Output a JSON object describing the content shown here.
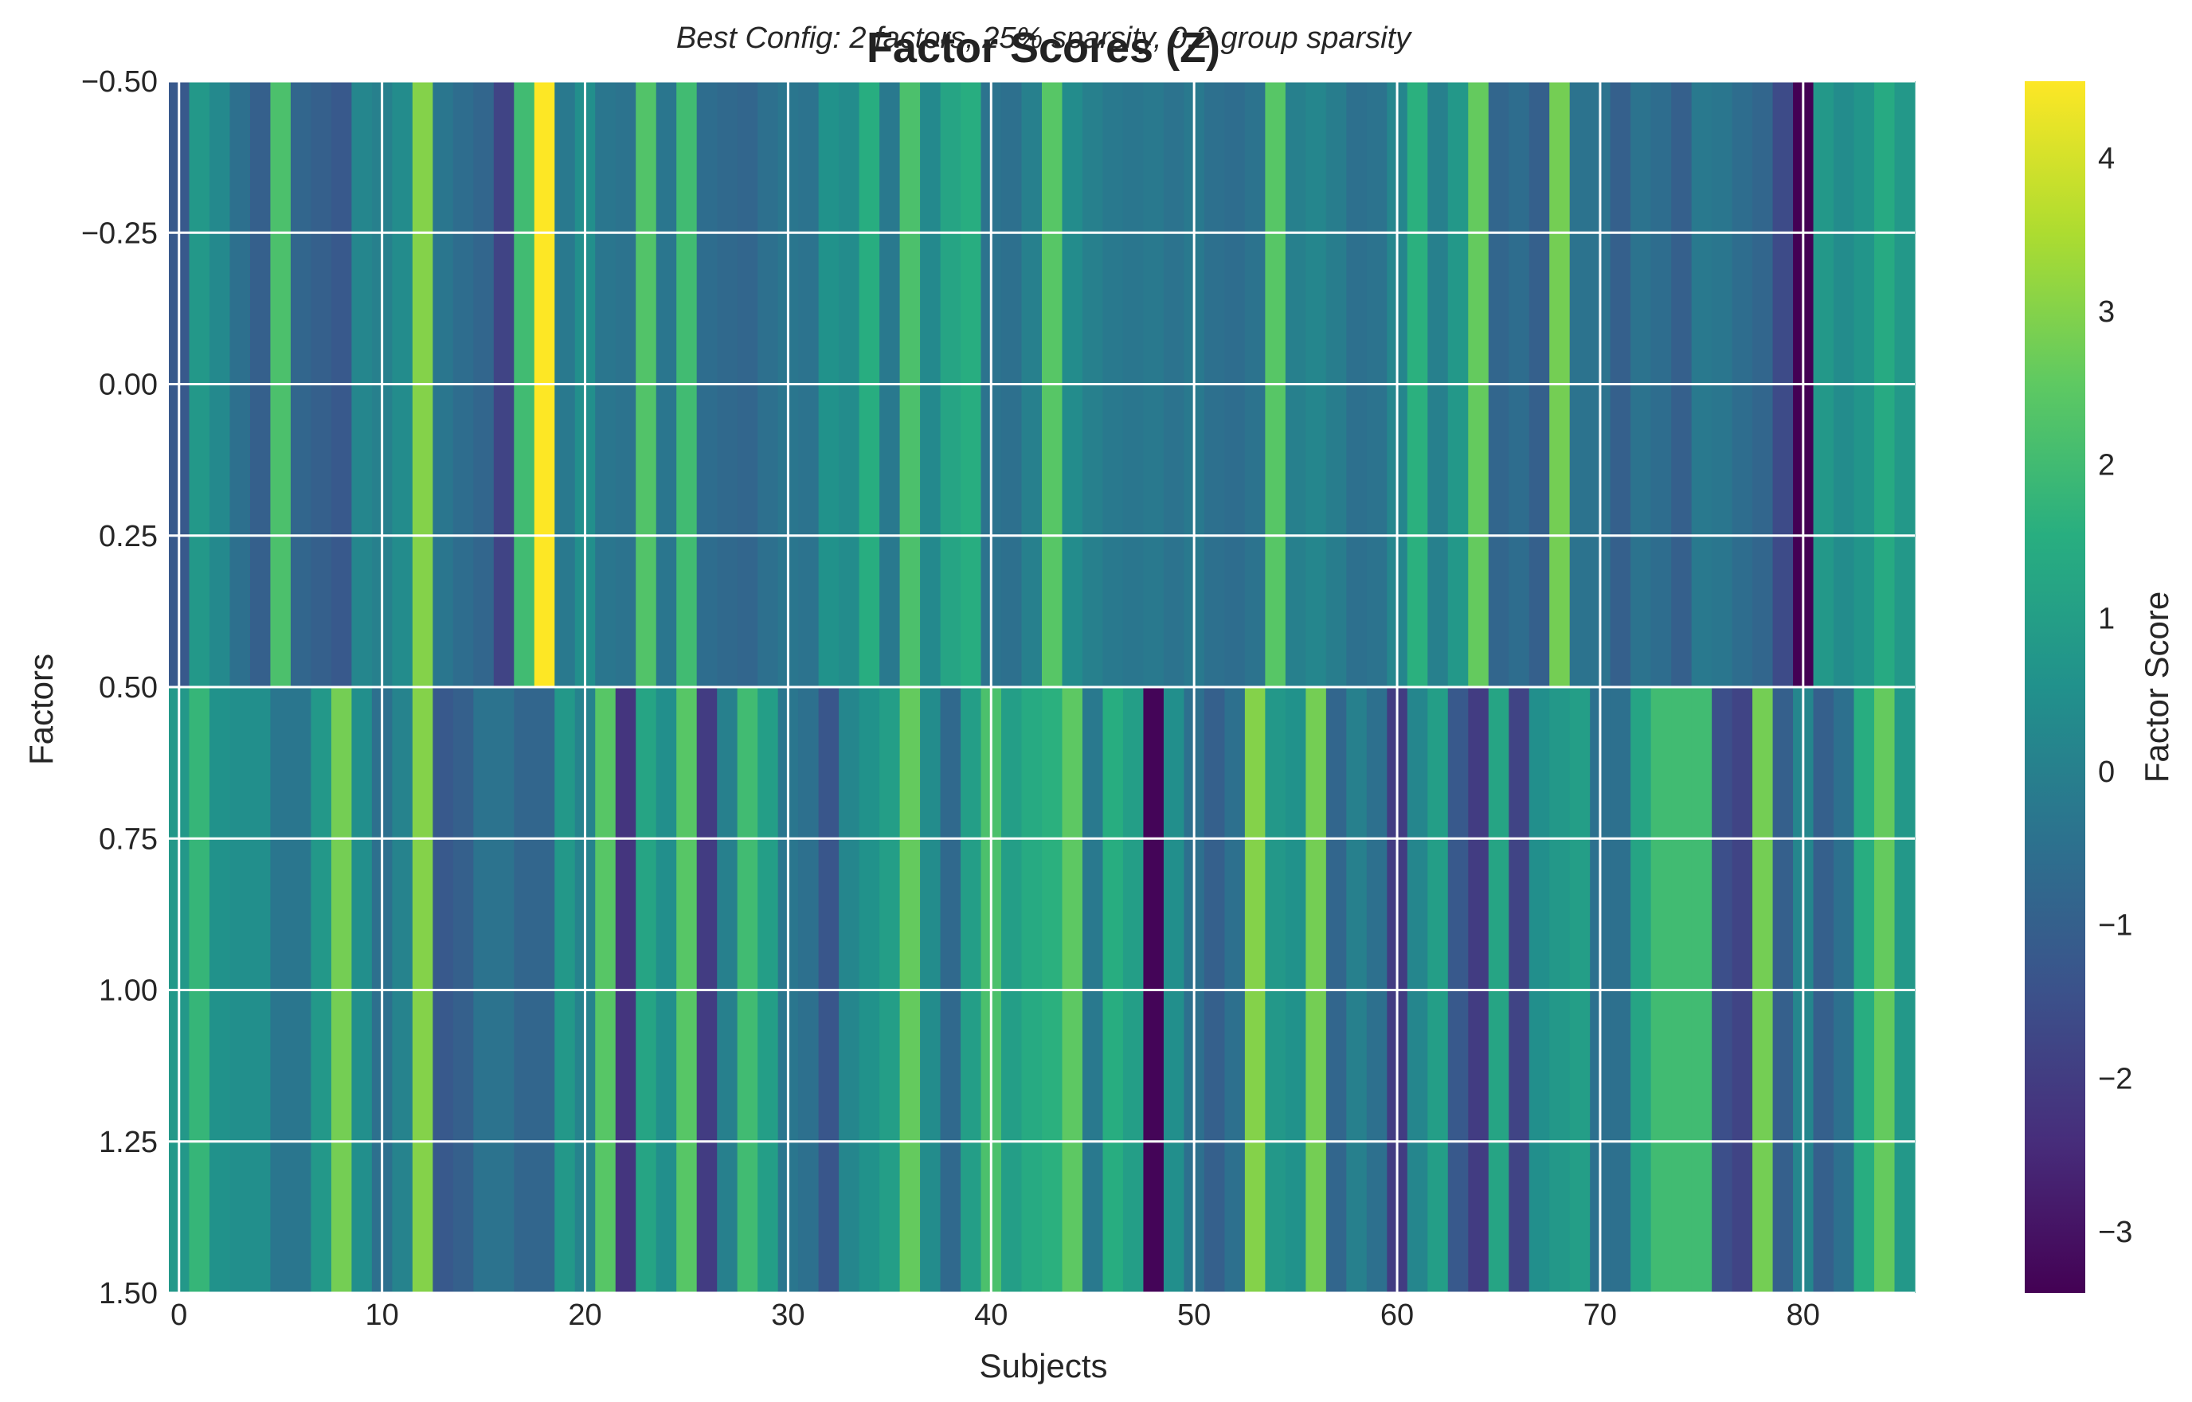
{
  "chart_data": {
    "type": "heatmap",
    "title": "Factor Scores (Z)",
    "subtitle": "Best Config: 2 factors, 25% sparsity, 0.2 group sparsity",
    "xlabel": "Subjects",
    "ylabel": "Factors",
    "colorbar_label": "Factor Score",
    "colormap": "viridis",
    "color_range": [
      -3.4,
      4.5
    ],
    "colorbar_ticks": [
      -3,
      -2,
      -1,
      0,
      1,
      2,
      3,
      4
    ],
    "colorbar_tick_labels": [
      "−3",
      "−2",
      "−1",
      "0",
      "1",
      "2",
      "3",
      "4"
    ],
    "xlim": [
      -0.5,
      85.5
    ],
    "ylim": [
      1.5,
      -0.5
    ],
    "x_ticks": [
      0,
      10,
      20,
      30,
      40,
      50,
      60,
      70,
      80
    ],
    "x_tick_labels": [
      "0",
      "10",
      "20",
      "30",
      "40",
      "50",
      "60",
      "70",
      "80"
    ],
    "y_ticks": [
      -0.5,
      -0.25,
      0,
      0.25,
      0.5,
      0.75,
      1,
      1.25,
      1.5
    ],
    "y_tick_labels": [
      "−0.50",
      "−0.25",
      "0.00",
      "0.25",
      "0.50",
      "0.75",
      "1.00",
      "1.25",
      "1.50"
    ],
    "grid": true,
    "rows": [
      {
        "factor": 0,
        "values": [
          -1.2,
          0.8,
          0.3,
          -0.5,
          -1.0,
          2.2,
          -0.8,
          -1.0,
          -1.2,
          0.2,
          0.0,
          0.4,
          3.0,
          -0.3,
          -0.6,
          -0.8,
          -1.8,
          2.0,
          4.5,
          -0.2,
          0.5,
          -0.3,
          -0.4,
          2.3,
          -0.3,
          2.0,
          -0.6,
          -0.7,
          -0.8,
          -0.5,
          -0.3,
          -0.4,
          0.6,
          0.4,
          1.5,
          -0.2,
          2.2,
          0.3,
          1.2,
          1.5,
          -0.4,
          -0.5,
          0.0,
          2.4,
          0.4,
          0.0,
          -0.2,
          -0.3,
          -0.2,
          -0.4,
          -0.2,
          -0.5,
          -0.6,
          -0.4,
          2.4,
          0.0,
          0.2,
          -0.1,
          -0.5,
          -0.4,
          0.2,
          1.6,
          0.0,
          0.8,
          2.6,
          -0.8,
          -0.6,
          -1.0,
          2.8,
          -0.4,
          -0.4,
          -1.0,
          -0.4,
          -0.6,
          -1.0,
          -0.2,
          -0.3,
          -0.6,
          -0.8,
          -1.6,
          -3.4,
          0.8,
          0.4,
          0.7,
          1.4,
          0.8
        ]
      },
      {
        "factor": 1,
        "values": [
          0.8,
          1.8,
          0.6,
          0.5,
          0.5,
          -0.3,
          -0.3,
          0.8,
          2.8,
          0.5,
          -0.5,
          0.1,
          3.0,
          -1.2,
          -1.0,
          -0.4,
          -0.4,
          -0.8,
          -0.8,
          0.8,
          0.1,
          2.4,
          -2.2,
          1.2,
          0.5,
          2.4,
          -2.0,
          0.0,
          2.0,
          1.0,
          -0.3,
          -0.5,
          -1.3,
          0.2,
          0.6,
          1.0,
          2.6,
          0.4,
          -0.7,
          1.0,
          2.2,
          1.0,
          1.4,
          1.6,
          2.5,
          -0.2,
          1.5,
          1.0,
          -3.3,
          0.5,
          -0.5,
          -1.0,
          -0.5,
          3.0,
          0.8,
          0.6,
          2.8,
          -0.8,
          0.0,
          -0.5,
          -2.0,
          0.2,
          1.0,
          -1.2,
          -2.0,
          1.2,
          -1.8,
          0.5,
          0.8,
          1.0,
          -0.5,
          -0.5,
          1.2,
          2.0,
          2.0,
          2.0,
          -1.5,
          -1.8,
          2.8,
          -1.0,
          0.2,
          -1.0,
          -0.5,
          1.5,
          2.6,
          0.8
        ]
      }
    ]
  }
}
